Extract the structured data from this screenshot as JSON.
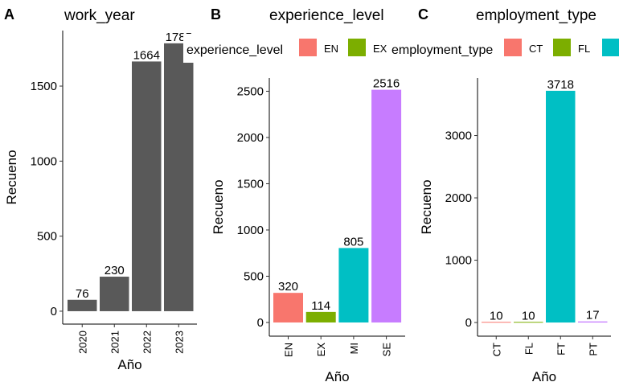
{
  "chart_data": [
    {
      "type": "bar",
      "tag": "A",
      "title": "work_year",
      "x_label": "Año",
      "y_label": "Recueno",
      "categories": [
        "2020",
        "2021",
        "2022",
        "2023"
      ],
      "values": [
        76,
        230,
        1664,
        1785
      ],
      "color": "#595959",
      "ylim": [
        -86,
        1870
      ],
      "yticks": [
        0,
        500,
        1000,
        1500
      ]
    },
    {
      "type": "bar",
      "tag": "B",
      "title": "experience_level",
      "x_label": "Año",
      "y_label": "Recueno",
      "categories": [
        "EN",
        "EX",
        "MI",
        "SE"
      ],
      "values": [
        320,
        114,
        805,
        2516
      ],
      "colors": [
        "#F8766D",
        "#7CAE00",
        "#00BFC4",
        "#C77CFF"
      ],
      "legend_title": "experience_level",
      "ylim": [
        -148,
        2643
      ],
      "yticks": [
        0,
        500,
        1000,
        1500,
        2000,
        2500
      ]
    },
    {
      "type": "bar",
      "tag": "C",
      "title": "employment_type",
      "x_label": "Año",
      "y_label": "Recueno",
      "categories": [
        "CT",
        "FL",
        "FT",
        "PT"
      ],
      "values": [
        10,
        10,
        3718,
        17
      ],
      "colors": [
        "#F8766D",
        "#7CAE00",
        "#00BFC4",
        "#C77CFF"
      ],
      "legend_title": "employment_type",
      "ylim": [
        -219,
        3923
      ],
      "yticks": [
        0,
        1000,
        2000,
        3000
      ]
    }
  ]
}
